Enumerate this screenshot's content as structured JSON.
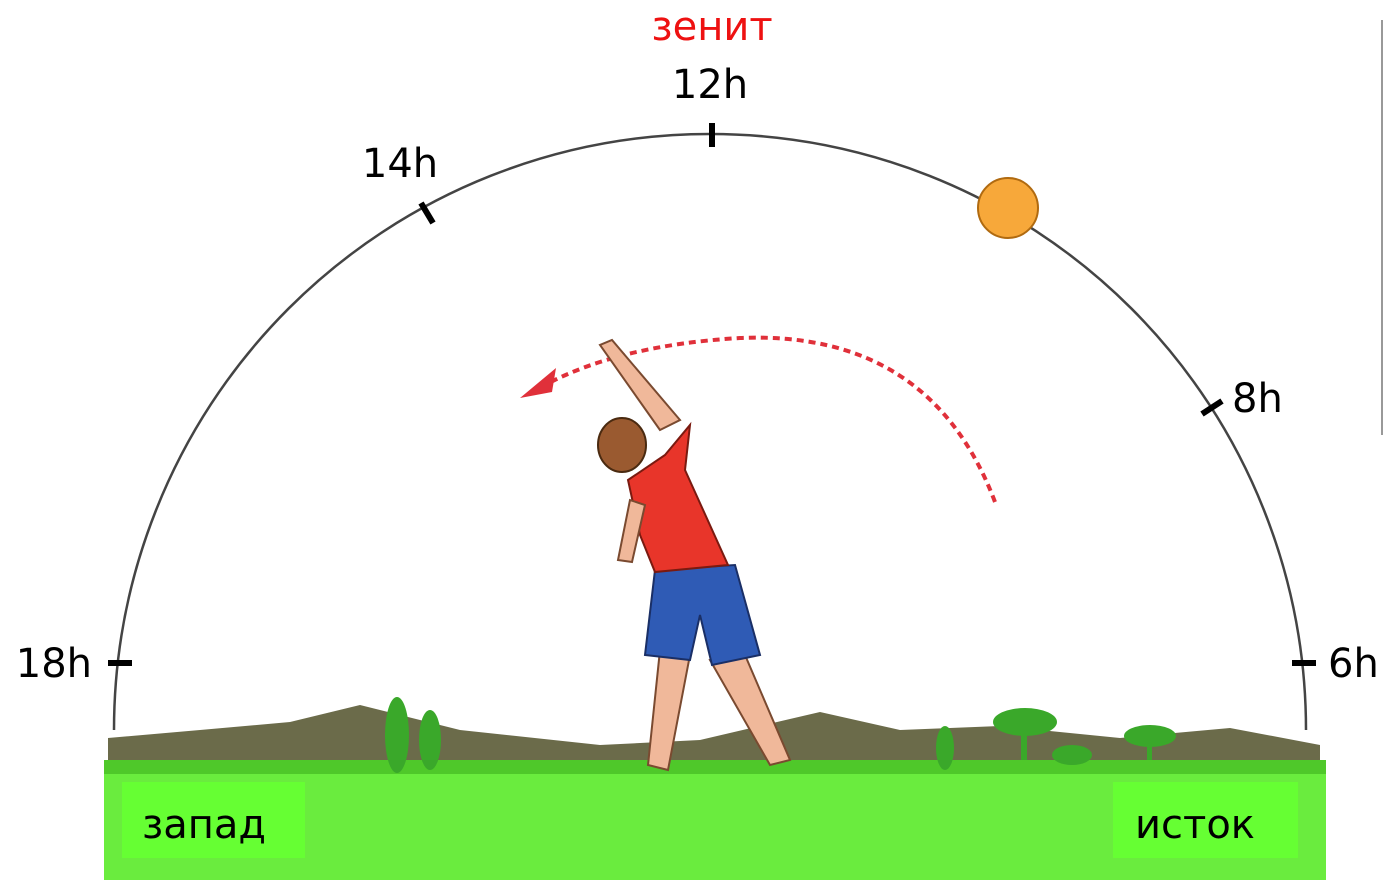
{
  "title": "зенит",
  "hour_marks": [
    {
      "label": "12h"
    },
    {
      "label": "14h"
    },
    {
      "label": "8h"
    },
    {
      "label": "18h"
    },
    {
      "label": "6h"
    }
  ],
  "directions": {
    "west": "запад",
    "east": "исток"
  }
}
